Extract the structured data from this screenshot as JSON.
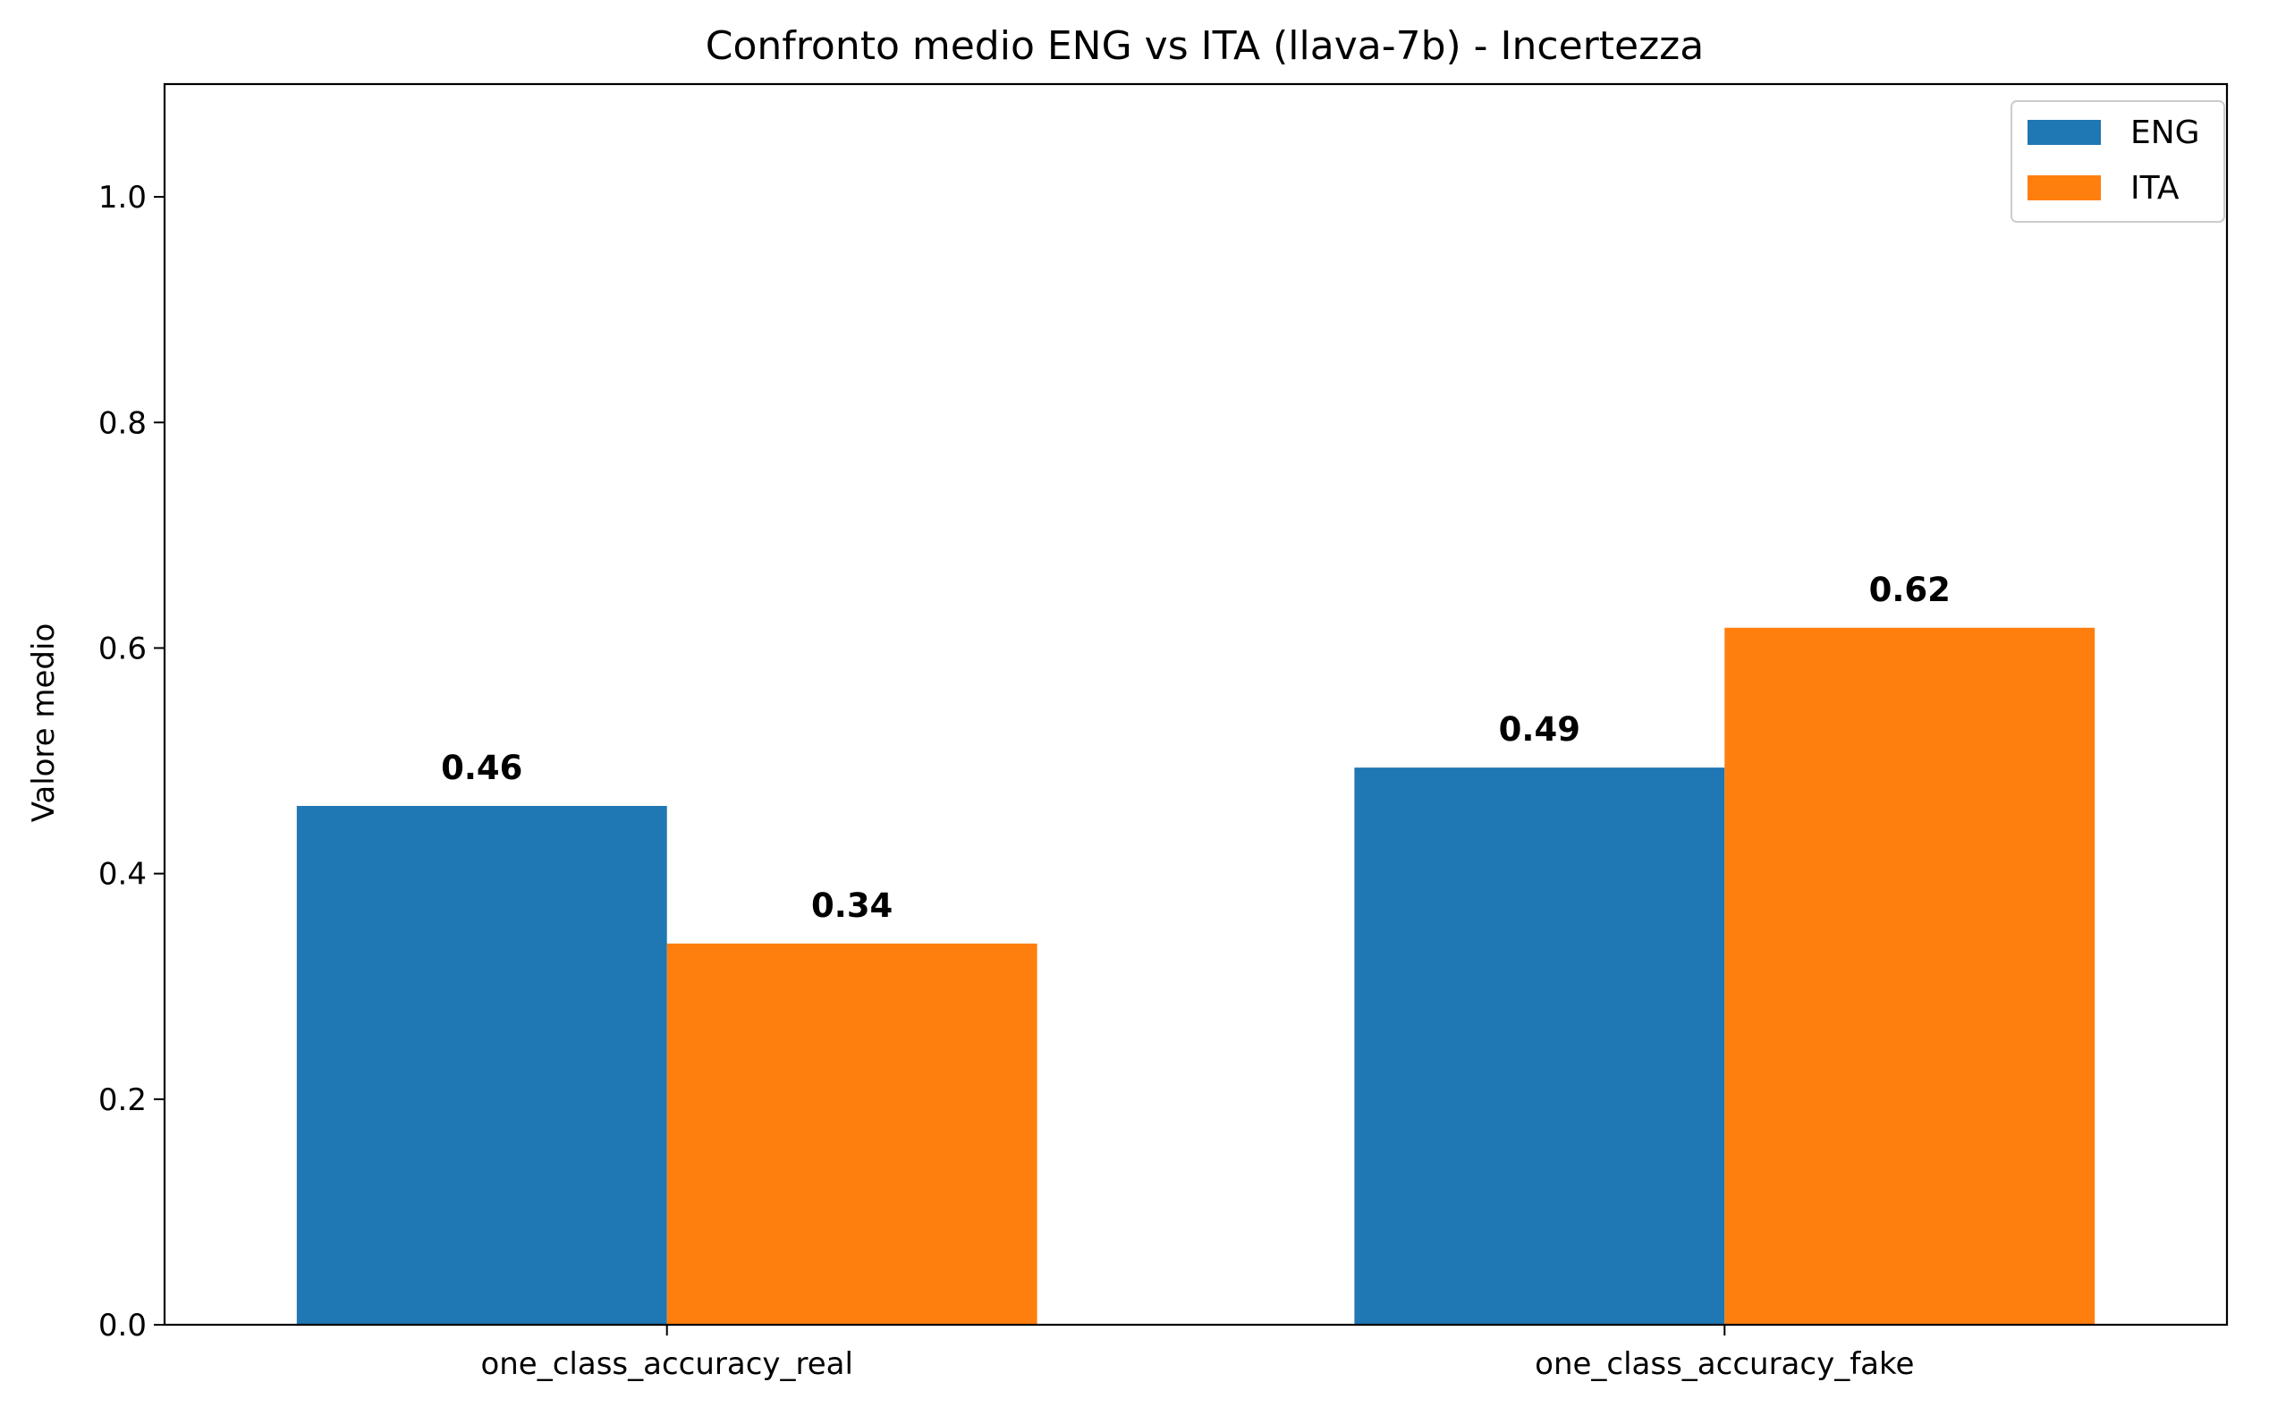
{
  "chart_data": {
    "type": "bar",
    "title": "Confronto medio ENG vs ITA (llava-7b) - Incertezza",
    "xlabel": "",
    "ylabel": "Valore medio",
    "categories": [
      "one_class_accuracy_real",
      "one_class_accuracy_fake"
    ],
    "series": [
      {
        "name": "ENG",
        "values": [
          0.46,
          0.494
        ],
        "labels": [
          "0.46",
          "0.49"
        ],
        "color": "#1f77b4"
      },
      {
        "name": "ITA",
        "values": [
          0.338,
          0.618
        ],
        "labels": [
          "0.34",
          "0.62"
        ],
        "color": "#ff7f0e"
      }
    ],
    "ylim": [
      0,
      1.1
    ],
    "yticks": [
      0.0,
      0.2,
      0.4,
      0.6,
      0.8,
      1.0
    ],
    "ytick_labels": [
      "0.0",
      "0.2",
      "0.4",
      "0.6",
      "0.8",
      "1.0"
    ],
    "grid": false,
    "legend": {
      "position": "top-right",
      "entries": [
        "ENG",
        "ITA"
      ]
    }
  }
}
